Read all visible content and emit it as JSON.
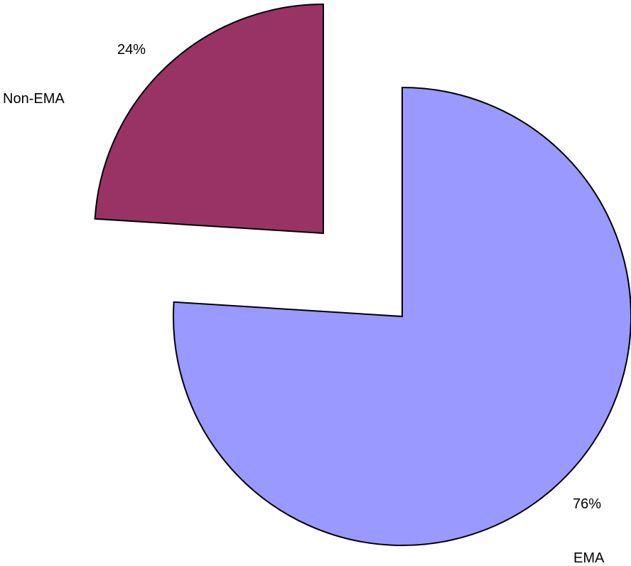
{
  "chart_data": {
    "type": "pie",
    "slices": [
      {
        "label": "EMA",
        "value": 76,
        "value_label": "76%",
        "color": "#9999FF"
      },
      {
        "label": "Non-EMA",
        "value": 24,
        "value_label": "24%",
        "color": "#993366"
      }
    ],
    "start_angle": "12 o'clock",
    "direction": "clockwise",
    "exploded": true,
    "legend": "none"
  }
}
